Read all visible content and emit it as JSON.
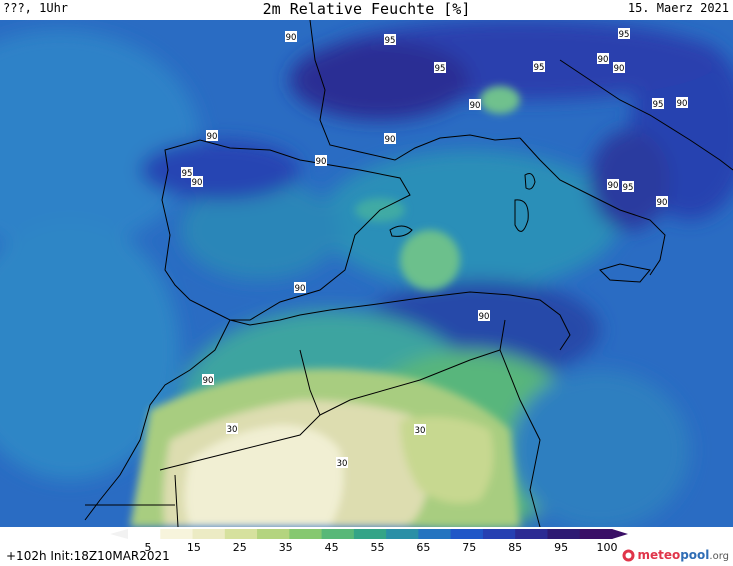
{
  "header": {
    "left": "???, 1Uhr",
    "title": "2m Relative Feuchte [%]",
    "right": "15. Maerz 2021"
  },
  "footer": {
    "init": "+102h  Init:18Z10MAR2021",
    "logo_main": "meteo",
    "logo_accent": "pool",
    "logo_tld": ".org"
  },
  "colorbar": {
    "tick_labels": [
      "5",
      "15",
      "25",
      "35",
      "45",
      "55",
      "65",
      "75",
      "85",
      "95",
      "100"
    ],
    "colors": [
      "#ffffff",
      "#f7f4dc",
      "#ecebc4",
      "#d6e19e",
      "#b4d47f",
      "#86c870",
      "#58b878",
      "#34a487",
      "#2a8fa6",
      "#2474c0",
      "#2057c7",
      "#2640b2",
      "#2c2b93",
      "#2e1a73",
      "#3a0f66"
    ]
  },
  "map_labels": [
    {
      "text": "90"
    },
    {
      "text": "95"
    },
    {
      "text": "95"
    },
    {
      "text": "95"
    },
    {
      "text": "95"
    },
    {
      "text": "90"
    },
    {
      "text": "90"
    },
    {
      "text": "90"
    },
    {
      "text": "95"
    },
    {
      "text": "90"
    },
    {
      "text": "90"
    },
    {
      "text": "90"
    },
    {
      "text": "90"
    },
    {
      "text": "95"
    },
    {
      "text": "90"
    },
    {
      "text": "90"
    },
    {
      "text": "95"
    },
    {
      "text": "90"
    },
    {
      "text": "90"
    },
    {
      "text": "90"
    },
    {
      "text": "90"
    },
    {
      "text": "30"
    },
    {
      "text": "30"
    },
    {
      "text": "30"
    }
  ]
}
